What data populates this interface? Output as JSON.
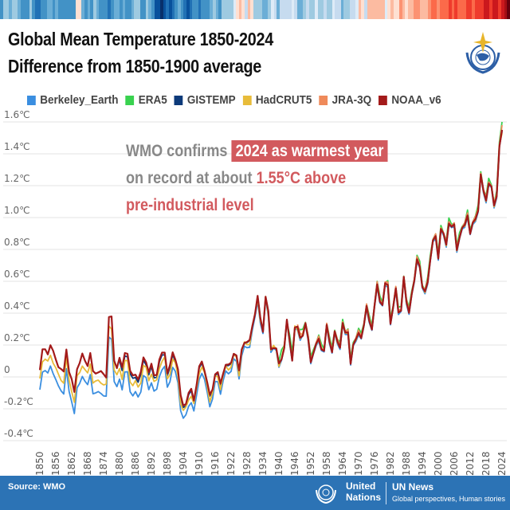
{
  "header": {
    "title_line1": "Global Mean Temperature 1850-2024",
    "title_line2": "Difference from 1850-1900 average",
    "logo": "wmo-emblem-icon"
  },
  "annotation": {
    "part1": "WMO confirms",
    "highlight": "2024 as warmest year",
    "part2": "on record at about",
    "value": "1.55°C above",
    "part3": "pre-industrial level"
  },
  "footer": {
    "source": "Source: WMO",
    "org_line1": "United",
    "org_line2": "Nations",
    "news_title": "UN News",
    "news_tagline": "Global perspectives, Human stories"
  },
  "colors": {
    "Berkeley_Earth": "#3a8ee0",
    "ERA5": "#39d24f",
    "GISTEMP": "#0d3a7a",
    "HadCRUT5": "#e8bc3a",
    "JRA-3Q": "#ef8a5a",
    "NOAA_v6": "#a31a1a",
    "highlight": "#d25a5e",
    "footer": "#2c73b5"
  },
  "chart_data": {
    "type": "line",
    "title": "Global Mean Temperature 1850-2024",
    "subtitle": "Difference from 1850-1900 average",
    "xlabel": "",
    "ylabel": "",
    "ylim": [
      -0.4,
      1.6
    ],
    "xlim": [
      1850,
      2024
    ],
    "grid": true,
    "legend_position": "top",
    "y_ticks": [
      "1.6℃",
      "1.4℃",
      "1.2℃",
      "1.0℃",
      "0.8℃",
      "0.6℃",
      "0.4℃",
      "0.2℃",
      "0",
      "-0.2℃",
      "-0.4℃"
    ],
    "y_tick_values": [
      1.6,
      1.4,
      1.2,
      1.0,
      0.8,
      0.6,
      0.4,
      0.2,
      0,
      -0.2,
      -0.4
    ],
    "x_ticks": [
      "1850",
      "1856",
      "1862",
      "1868",
      "1874",
      "1880",
      "1886",
      "1892",
      "1898",
      "1904",
      "1910",
      "1916",
      "1922",
      "1928",
      "1934",
      "1940",
      "1946",
      "1952",
      "1958",
      "1964",
      "1970",
      "1976",
      "1982",
      "1988",
      "1994",
      "2000",
      "2006",
      "2012",
      "2018",
      "2024"
    ],
    "base": {
      "start_year": 1850,
      "values": [
        0.03,
        0.16,
        0.19,
        0.15,
        0.18,
        0.16,
        0.13,
        0.06,
        0.03,
        0.04,
        0.19,
        0.02,
        -0.03,
        -0.08,
        0.06,
        0.07,
        0.14,
        0.12,
        0.07,
        0.13,
        0.04,
        0.04,
        0.02,
        0.02,
        0.03,
        0.01,
        0.36,
        0.37,
        0.12,
        0.06,
        0.1,
        0.06,
        0.17,
        0.14,
        0.02,
        0.02,
        0.03,
        -0.03,
        0.02,
        0.14,
        0.1,
        0.01,
        0.08,
        0.03,
        0.01,
        0.09,
        0.16,
        0.17,
        0.01,
        0.06,
        0.17,
        0.12,
        0.03,
        -0.12,
        -0.16,
        -0.17,
        -0.12,
        -0.07,
        -0.13,
        -0.06,
        0.05,
        0.11,
        0.05,
        -0.05,
        -0.12,
        -0.06,
        0.02,
        0.01,
        -0.04,
        0.04,
        0.07,
        0.06,
        0.1,
        0.16,
        0.12,
        0.03,
        0.19,
        0.22,
        0.2,
        0.23,
        0.34,
        0.39,
        0.49,
        0.38,
        0.3,
        0.49,
        0.4,
        0.19,
        0.19,
        0.16,
        0.08,
        0.13,
        0.18,
        0.34,
        0.24,
        0.12,
        0.3,
        0.3,
        0.26,
        0.27,
        0.33,
        0.24,
        0.1,
        0.15,
        0.2,
        0.24,
        0.18,
        0.16,
        0.32,
        0.23,
        0.16,
        0.28,
        0.22,
        0.19,
        0.34,
        0.27,
        0.28,
        0.09,
        0.2,
        0.23,
        0.28,
        0.25,
        0.32,
        0.44,
        0.36,
        0.3,
        0.44,
        0.58,
        0.48,
        0.45,
        0.58,
        0.58,
        0.34,
        0.43,
        0.55,
        0.41,
        0.42,
        0.62,
        0.47,
        0.41,
        0.52,
        0.6,
        0.74,
        0.7,
        0.56,
        0.53,
        0.6,
        0.74,
        0.85,
        0.88,
        0.75,
        0.93,
        0.89,
        0.83,
        0.97,
        0.94,
        0.95,
        0.8,
        0.88,
        0.93,
        0.95,
        1.02,
        0.9,
        0.96,
        0.99,
        1.05,
        1.27,
        1.16,
        1.11,
        1.22,
        1.19,
        1.07,
        1.14,
        1.45,
        1.55
      ]
    },
    "series": [
      {
        "name": "Berkeley_Earth",
        "early_offset": -0.13,
        "late_offset": -0.01
      },
      {
        "name": "ERA5",
        "early_offset": null,
        "late_offset": 0.02,
        "start_year": 1940
      },
      {
        "name": "GISTEMP",
        "early_offset": -0.02,
        "late_offset": 0.0,
        "start_year": 1880
      },
      {
        "name": "HadCRUT5",
        "early_offset": -0.06,
        "late_offset": 0.0
      },
      {
        "name": "JRA-3Q",
        "early_offset": null,
        "late_offset": 0.01,
        "start_year": 1947
      },
      {
        "name": "NOAA_v6",
        "early_offset": 0.0,
        "late_offset": 0.0
      }
    ],
    "values_2024": {
      "Berkeley_Earth": 1.55,
      "ERA5": 1.6,
      "GISTEMP": 1.54,
      "HadCRUT5": 1.53,
      "JRA-3Q": 1.58,
      "NOAA_v6": 1.55
    }
  }
}
